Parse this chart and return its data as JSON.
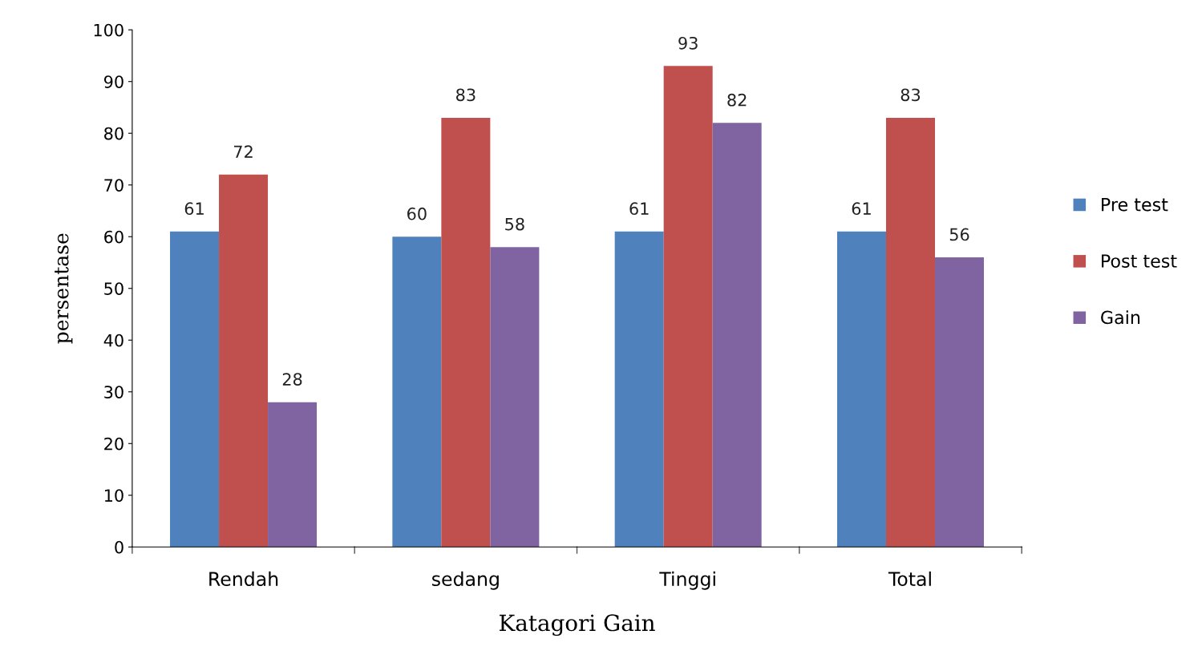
{
  "chart_data": {
    "type": "bar",
    "xlabel": "Katagori Gain",
    "ylabel": "persentase",
    "categories": [
      "Rendah",
      "sedang",
      "Tinggi",
      "Total"
    ],
    "series": [
      {
        "name": "Pre test",
        "color": "#4f81bd",
        "values": [
          61,
          60,
          61,
          61
        ]
      },
      {
        "name": "Post test",
        "color": "#c0504d",
        "values": [
          72,
          83,
          93,
          83
        ]
      },
      {
        "name": "Gain",
        "color": "#8064a2",
        "values": [
          28,
          58,
          82,
          56
        ]
      }
    ],
    "ylim": [
      0,
      100
    ],
    "yticks": [
      0,
      10,
      20,
      30,
      40,
      50,
      60,
      70,
      80,
      90,
      100
    ],
    "data_labels": true,
    "grid": false,
    "legend": "right"
  }
}
